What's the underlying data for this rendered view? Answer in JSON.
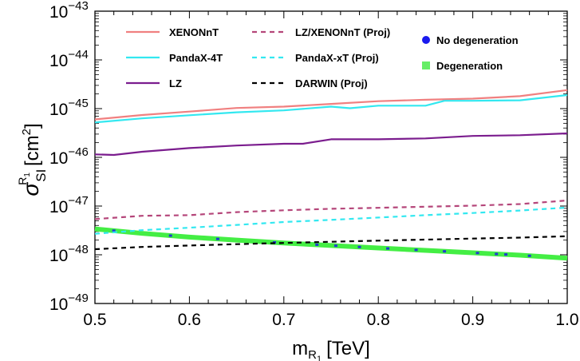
{
  "chart_data": {
    "type": "line",
    "xlabel": "m",
    "xlabel_sub": "R",
    "xlabel_subsub": "1",
    "xlabel_unit": "[TeV]",
    "ylabel_sym": "σ",
    "ylabel_sub": "SI",
    "ylabel_sup": "R",
    "ylabel_supsub": "1",
    "ylabel_unit": "[cm",
    "ylabel_unit_exp": "2",
    "ylabel_unit_close": "]",
    "xlim": [
      0.5,
      1.0
    ],
    "ylim_log10": [
      -49,
      -43
    ],
    "yscale": "log",
    "x_ticks": [
      "0.5",
      "0.6",
      "0.7",
      "0.8",
      "0.9",
      "1.0"
    ],
    "y_ticks": [
      {
        "base": "10",
        "exp": "−43",
        "v": -43
      },
      {
        "base": "10",
        "exp": "−44",
        "v": -44
      },
      {
        "base": "10",
        "exp": "−45",
        "v": -45
      },
      {
        "base": "10",
        "exp": "−46",
        "v": -46
      },
      {
        "base": "10",
        "exp": "−47",
        "v": -47
      },
      {
        "base": "10",
        "exp": "−48",
        "v": -48
      },
      {
        "base": "10",
        "exp": "−49",
        "v": -49
      }
    ],
    "legend_placement": "top-left",
    "series": [
      {
        "name": "XENONnT",
        "color": "#f08080",
        "style": "solid",
        "x": [
          0.5,
          0.55,
          0.6,
          0.65,
          0.7,
          0.75,
          0.8,
          0.85,
          0.9,
          0.95,
          1.0
        ],
        "y": [
          6e-46,
          7.4e-46,
          8.7e-46,
          1.03e-45,
          1.1e-45,
          1.25e-45,
          1.42e-45,
          1.52e-45,
          1.6e-45,
          1.8e-45,
          2.4e-45
        ]
      },
      {
        "name": "PandaX-4T",
        "color": "#33e8f0",
        "style": "solid",
        "x": [
          0.5,
          0.55,
          0.6,
          0.65,
          0.7,
          0.75,
          0.77,
          0.8,
          0.85,
          0.87,
          0.9,
          0.95,
          1.0
        ],
        "y": [
          5.2e-46,
          6.3e-46,
          7.3e-46,
          8.4e-46,
          9.2e-46,
          1.1e-45,
          1.02e-45,
          1.15e-45,
          1.15e-45,
          1.45e-45,
          1.45e-45,
          1.48e-45,
          1.9e-45
        ]
      },
      {
        "name": "LZ",
        "color": "#7b1d8e",
        "style": "solid",
        "x": [
          0.5,
          0.52,
          0.55,
          0.6,
          0.65,
          0.7,
          0.72,
          0.75,
          0.8,
          0.85,
          0.9,
          0.95,
          1.0
        ],
        "y": [
          1.15e-46,
          1.12e-46,
          1.3e-46,
          1.55e-46,
          1.75e-46,
          1.9e-46,
          1.9e-46,
          2.35e-46,
          2.35e-46,
          2.45e-46,
          2.75e-46,
          2.85e-46,
          3.1e-46
        ]
      },
      {
        "name": "LZ/XENONnT (Proj)",
        "color": "#b5467a",
        "style": "dashed",
        "x": [
          0.5,
          0.55,
          0.6,
          0.65,
          0.7,
          0.75,
          0.8,
          0.85,
          0.9,
          0.95,
          1.0
        ],
        "y": [
          5.4e-48,
          6.3e-48,
          6.5e-48,
          7.5e-48,
          8.2e-48,
          8.8e-48,
          9.2e-48,
          9.7e-48,
          1.02e-47,
          1.1e-47,
          1.3e-47
        ]
      },
      {
        "name": "PandaX-xT (Proj)",
        "color": "#33e8f0",
        "style": "dashed",
        "x": [
          0.5,
          0.55,
          0.6,
          0.65,
          0.7,
          0.75,
          0.8,
          0.85,
          0.9,
          0.95,
          1.0
        ],
        "y": [
          2.7e-48,
          3.2e-48,
          3.6e-48,
          4.1e-48,
          4.7e-48,
          5.2e-48,
          5.8e-48,
          6.5e-48,
          7.2e-48,
          8.1e-48,
          9.3e-48
        ]
      },
      {
        "name": "DARWIN (Proj)",
        "color": "#000000",
        "style": "dashed",
        "x": [
          0.5,
          0.55,
          0.6,
          0.65,
          0.7,
          0.75,
          0.8,
          0.85,
          0.9,
          0.95,
          1.0
        ],
        "y": [
          1.3e-48,
          1.45e-48,
          1.55e-48,
          1.65e-48,
          1.75e-48,
          1.85e-48,
          1.95e-48,
          2.05e-48,
          2.15e-48,
          2.25e-48,
          2.4e-48
        ]
      }
    ],
    "points": [
      {
        "name": "No degeneration",
        "color": "#1a1aee",
        "marker": "circle"
      },
      {
        "name": "Degeneration",
        "color": "#66ee66",
        "marker": "square"
      }
    ],
    "band": {
      "color": "#44ee44",
      "x": [
        0.5,
        0.55,
        0.6,
        0.65,
        0.7,
        0.75,
        0.8,
        0.85,
        0.9,
        0.95,
        1.0
      ],
      "y": [
        3.4e-48,
        2.75e-48,
        2.3e-48,
        2e-48,
        1.75e-48,
        1.55e-48,
        1.38e-48,
        1.23e-48,
        1.1e-48,
        9.8e-49,
        8.5e-49
      ]
    }
  }
}
